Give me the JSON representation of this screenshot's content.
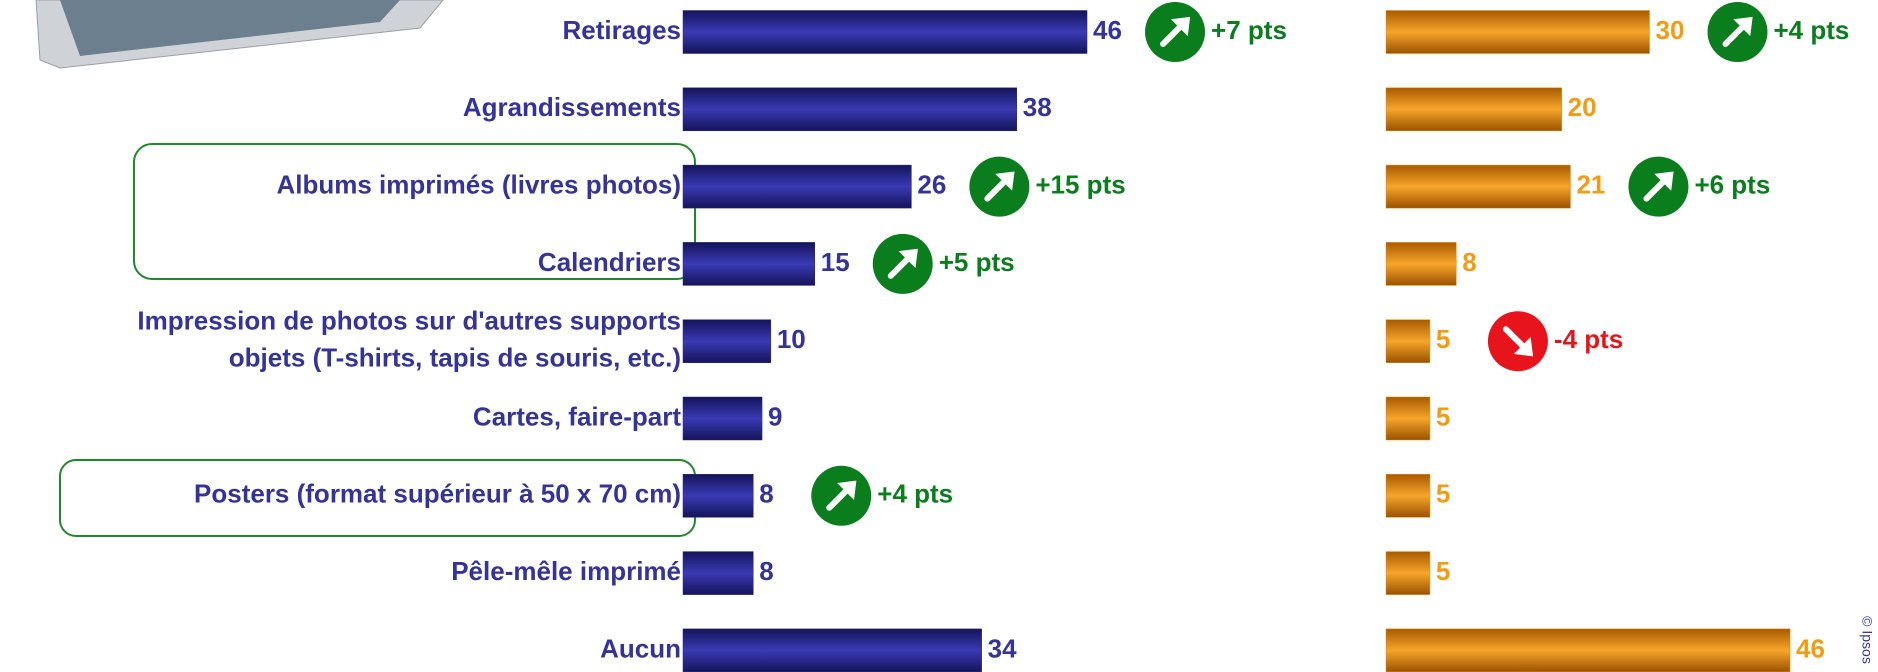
{
  "chart_data": {
    "type": "bar",
    "orientation": "horizontal",
    "categories": [
      "Retirages",
      "Agrandissements",
      "Albums imprimés (livres photos)",
      "Calendriers",
      [
        "Impression de photos sur d'autres supports",
        "objets (T-shirts, tapis de souris, etc.)"
      ],
      "Cartes, faire-part",
      "Posters (format supérieur à 50 x 70 cm)",
      "Pêle-mêle imprimé",
      "Aucun"
    ],
    "xlim": [
      0,
      60
    ],
    "series": [
      {
        "color": "#26267e",
        "label_color": "#33339a",
        "values": [
          46,
          38,
          26,
          15,
          10,
          9,
          8,
          8,
          34
        ],
        "changes": [
          7,
          null,
          15,
          5,
          null,
          null,
          4,
          null,
          null
        ],
        "change_labels": [
          "+7 pts",
          null,
          "+15 pts",
          "+5 pts",
          null,
          null,
          "+4 pts",
          null,
          null
        ]
      },
      {
        "color": "#e88a00",
        "label_color": "#f39c12",
        "values": [
          30,
          20,
          21,
          8,
          5,
          5,
          5,
          5,
          46
        ],
        "changes": [
          4,
          null,
          6,
          null,
          -4,
          null,
          null,
          null,
          null
        ],
        "change_labels": [
          "+4 pts",
          null,
          "+6 pts",
          null,
          "-4 pts",
          null,
          null,
          null,
          null
        ]
      }
    ],
    "copyright": "© Ipsos"
  }
}
